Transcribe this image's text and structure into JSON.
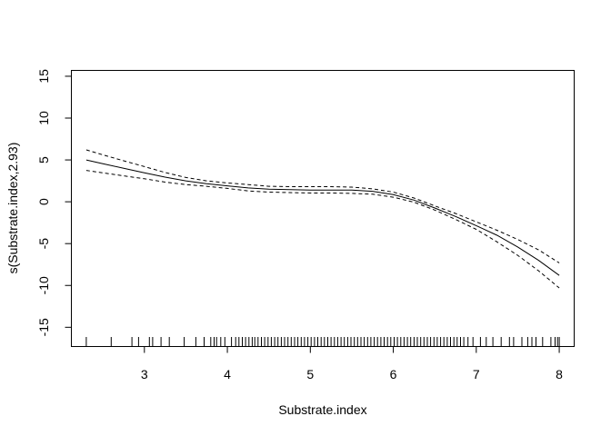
{
  "chart_data": {
    "type": "line",
    "title": "",
    "xlabel": "Substrate.index",
    "ylabel": "s(Substrate.index,2.93)",
    "xlim": [
      2.12,
      8.18
    ],
    "ylim": [
      -17.3,
      15.7
    ],
    "x_ticks": [
      3,
      4,
      5,
      6,
      7,
      8
    ],
    "x_tick_labels": [
      "3",
      "4",
      "5",
      "6",
      "7",
      "8"
    ],
    "y_ticks": [
      -15,
      -10,
      -5,
      0,
      5,
      10,
      15
    ],
    "y_tick_labels": [
      "-15",
      "-10",
      "-5",
      "0",
      "5",
      "10",
      "15"
    ],
    "grid": false,
    "legend": "none",
    "series": [
      {
        "style": "solid",
        "x": [
          2.3,
          2.5,
          2.75,
          3.0,
          3.25,
          3.5,
          3.75,
          4.0,
          4.25,
          4.5,
          4.75,
          5.0,
          5.25,
          5.5,
          5.75,
          6.0,
          6.25,
          6.5,
          6.75,
          7.0,
          7.25,
          7.5,
          7.75,
          8.0
        ],
        "y": [
          5.0,
          4.55,
          4.0,
          3.45,
          2.95,
          2.5,
          2.15,
          1.9,
          1.65,
          1.5,
          1.45,
          1.4,
          1.4,
          1.4,
          1.25,
          0.85,
          0.2,
          -0.75,
          -1.75,
          -2.85,
          -4.0,
          -5.4,
          -7.0,
          -8.8
        ]
      },
      {
        "style": "dashed",
        "x": [
          2.3,
          2.5,
          2.75,
          3.0,
          3.25,
          3.5,
          3.75,
          4.0,
          4.25,
          4.5,
          4.75,
          5.0,
          5.25,
          5.5,
          5.75,
          6.0,
          6.25,
          6.5,
          6.75,
          7.0,
          7.25,
          7.5,
          7.75,
          8.0
        ],
        "y": [
          6.2,
          5.6,
          4.9,
          4.2,
          3.5,
          2.9,
          2.5,
          2.25,
          2.05,
          1.85,
          1.8,
          1.8,
          1.8,
          1.75,
          1.55,
          1.15,
          0.45,
          -0.5,
          -1.4,
          -2.4,
          -3.4,
          -4.5,
          -5.75,
          -7.3
        ]
      },
      {
        "style": "dashed",
        "x": [
          2.3,
          2.5,
          2.75,
          3.0,
          3.25,
          3.5,
          3.75,
          4.0,
          4.25,
          4.5,
          4.75,
          5.0,
          5.25,
          5.5,
          5.75,
          6.0,
          6.25,
          6.5,
          6.75,
          7.0,
          7.25,
          7.5,
          7.75,
          8.0
        ],
        "y": [
          3.75,
          3.45,
          3.1,
          2.75,
          2.35,
          2.05,
          1.85,
          1.6,
          1.3,
          1.15,
          1.1,
          1.05,
          1.05,
          1.0,
          0.9,
          0.55,
          -0.05,
          -1.0,
          -2.1,
          -3.3,
          -4.8,
          -6.4,
          -8.25,
          -10.3
        ]
      }
    ],
    "rug_x": [
      2.3,
      2.6,
      2.85,
      2.93,
      3.06,
      3.1,
      3.2,
      3.3,
      3.48,
      3.62,
      3.72,
      3.8,
      3.84,
      3.87,
      3.92,
      3.97,
      4.05,
      4.1,
      4.14,
      4.18,
      4.22,
      4.26,
      4.3,
      4.33,
      4.37,
      4.41,
      4.45,
      4.49,
      4.53,
      4.57,
      4.61,
      4.65,
      4.69,
      4.73,
      4.77,
      4.81,
      4.85,
      4.89,
      4.93,
      4.97,
      5.01,
      5.05,
      5.09,
      5.13,
      5.17,
      5.21,
      5.25,
      5.29,
      5.33,
      5.37,
      5.41,
      5.45,
      5.49,
      5.53,
      5.57,
      5.61,
      5.65,
      5.69,
      5.73,
      5.77,
      5.81,
      5.85,
      5.89,
      5.93,
      5.97,
      6.01,
      6.05,
      6.09,
      6.13,
      6.17,
      6.21,
      6.25,
      6.29,
      6.33,
      6.37,
      6.41,
      6.45,
      6.49,
      6.53,
      6.57,
      6.61,
      6.65,
      6.69,
      6.73,
      6.77,
      6.81,
      6.85,
      6.9,
      6.96,
      7.05,
      7.12,
      7.2,
      7.3,
      7.4,
      7.45,
      7.55,
      7.62,
      7.67,
      7.72,
      7.8,
      7.9,
      7.95,
      7.98,
      8.0
    ]
  }
}
